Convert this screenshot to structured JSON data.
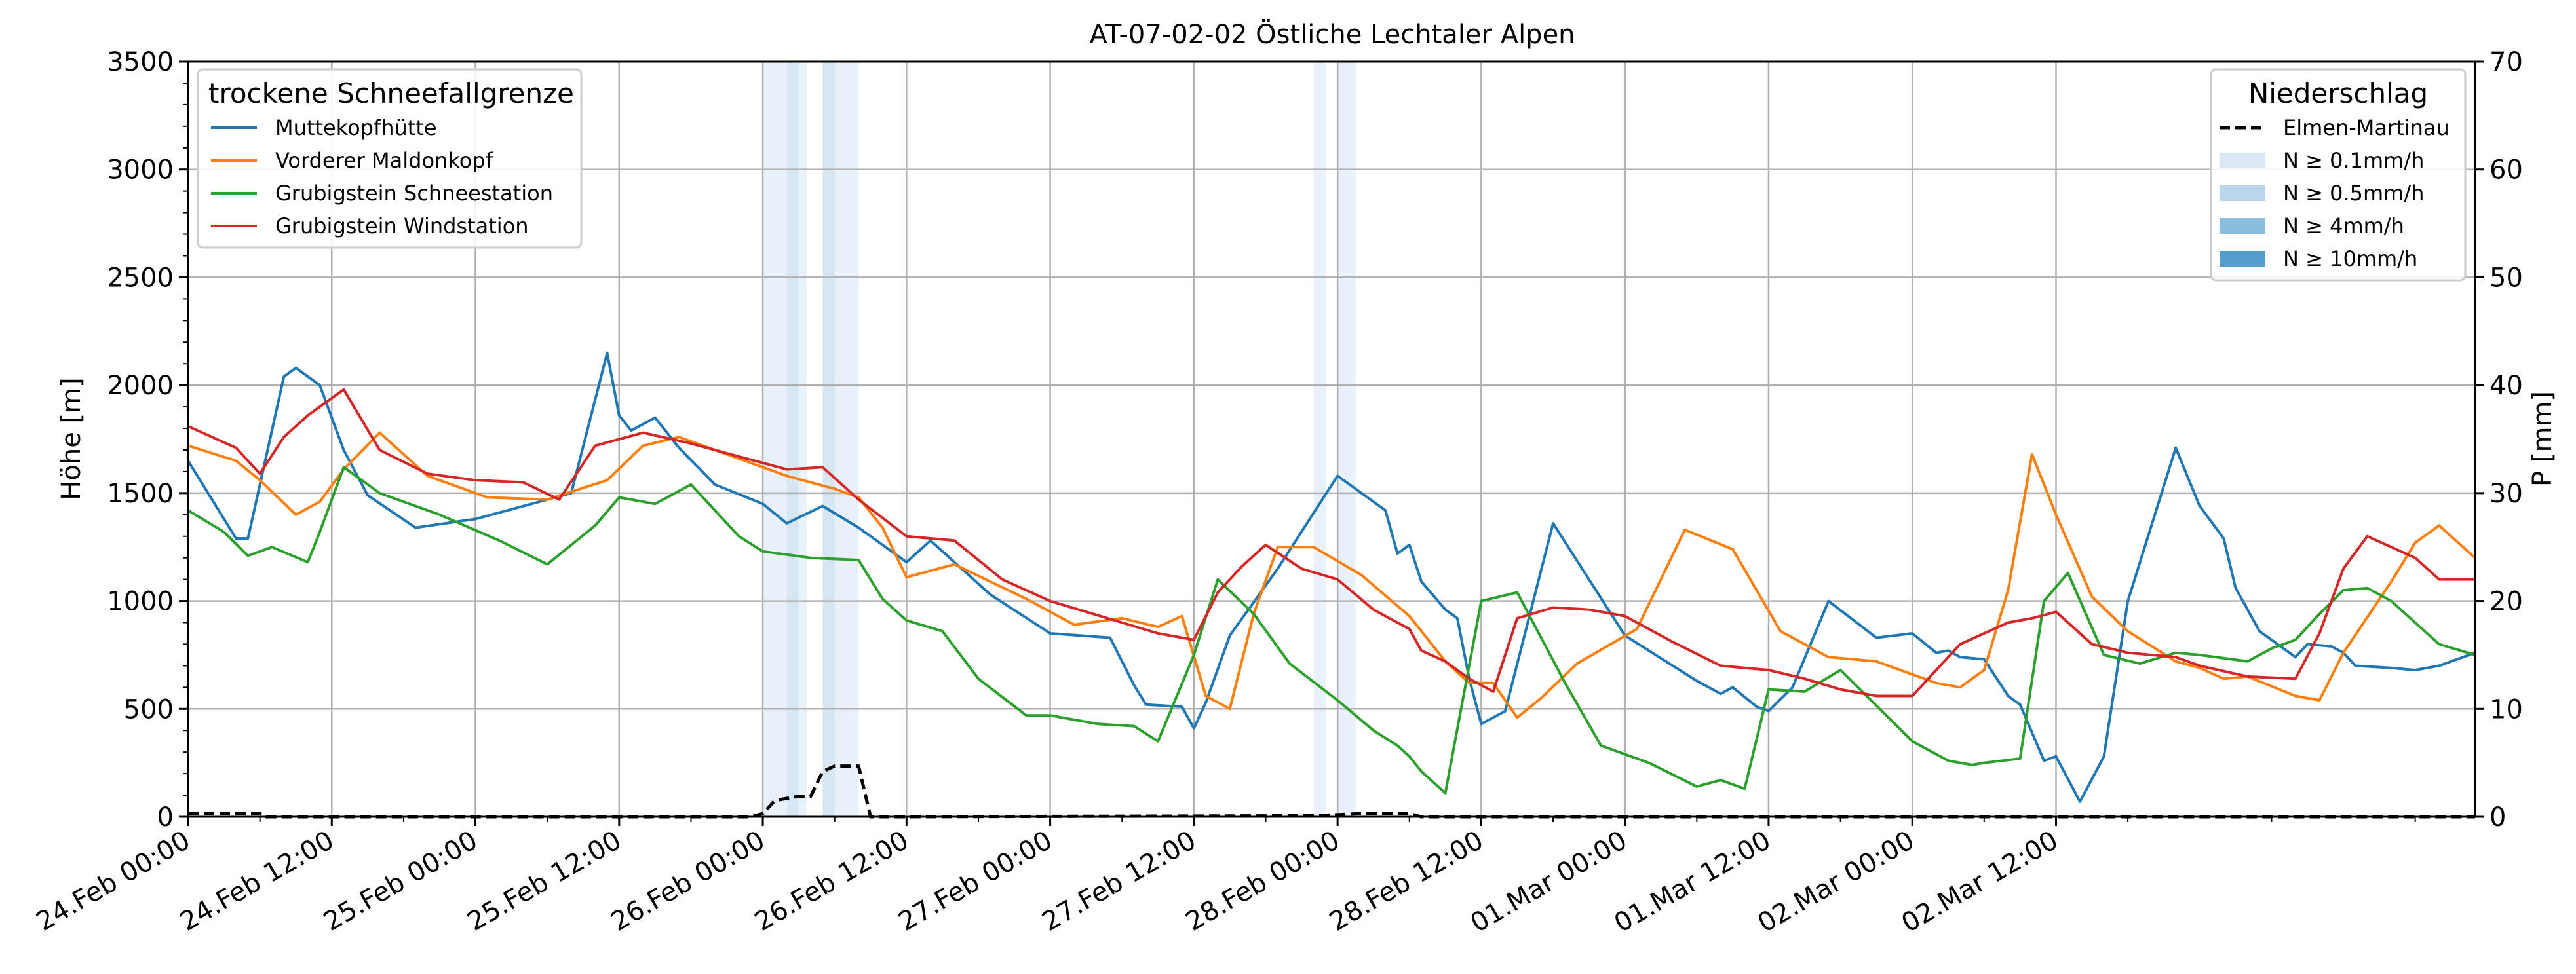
{
  "chart_data": {
    "type": "line",
    "title": "AT-07-02-02 Östliche Lechtaler Alpen",
    "ylabel": "Höhe [m]",
    "y2label": "P [mm]",
    "xlim": [
      "2024-02-24 00:00",
      "2024-03-02 23:00"
    ],
    "ylim": [
      0,
      3500
    ],
    "y2lim": [
      0,
      70
    ],
    "grid": true,
    "x_tick_labels": [
      "24.Feb 00:00",
      "24.Feb 12:00",
      "25.Feb 00:00",
      "25.Feb 12:00",
      "26.Feb 00:00",
      "26.Feb 12:00",
      "27.Feb 00:00",
      "27.Feb 12:00",
      "28.Feb 00:00",
      "28.Feb 12:00",
      "01.Mar 00:00",
      "01.Mar 12:00",
      "02.Mar 00:00",
      "02.Mar 12:00"
    ],
    "y_ticks": [
      0,
      500,
      1000,
      1500,
      2000,
      2500,
      3000,
      3500
    ],
    "y2_ticks": [
      0,
      10,
      20,
      30,
      40,
      50,
      60,
      70
    ],
    "legend_snow": {
      "title": "trockene Schneefallgrenze",
      "position": "top-left",
      "entries": [
        "Muttekopfhütte",
        "Vorderer Maldonkopf",
        "Grubigstein Schneestation",
        "Grubigstein Windstation"
      ]
    },
    "legend_precip": {
      "title": "Niederschlag",
      "position": "top-right",
      "entries": [
        "Elmen-Martinau",
        "N ≥ 0.1mm/h",
        "N ≥ 0.5mm/h",
        "N ≥ 4mm/h",
        "N ≥ 10mm/h"
      ]
    },
    "colors": {
      "Muttekopfhütte": "#1f77b4",
      "Vorderer Maldonkopf": "#ff7f0e",
      "Grubigstein Schneestation": "#2ca02c",
      "Grubigstein Windstation": "#d62728",
      "Elmen-Martinau": "#000000",
      "N ≥ 0.1mm/h": "#dbe9f6",
      "N ≥ 0.5mm/h": "#bad6eb",
      "N ≥ 4mm/h": "#89bedc",
      "N ≥ 10mm/h": "#539ecd"
    },
    "series": [
      {
        "name": "Muttekopfhütte",
        "axis": "left",
        "x": [
          "2024-02-24 00:00",
          "2024-02-24 04:00",
          "2024-02-24 05:00",
          "2024-02-24 08:00",
          "2024-02-24 09:00",
          "2024-02-24 11:00",
          "2024-02-24 13:00",
          "2024-02-24 15:00",
          "2024-02-24 19:00",
          "2024-02-25 00:00",
          "2024-02-25 08:00",
          "2024-02-25 11:00",
          "2024-02-25 12:00",
          "2024-02-25 13:00",
          "2024-02-25 15:00",
          "2024-02-25 17:00",
          "2024-02-25 20:00",
          "2024-02-26 00:00",
          "2024-02-26 02:00",
          "2024-02-26 05:00",
          "2024-02-26 08:00",
          "2024-02-26 10:00",
          "2024-02-26 12:00",
          "2024-02-26 14:00",
          "2024-02-26 19:00",
          "2024-02-27 00:00",
          "2024-02-27 05:00",
          "2024-02-27 07:00",
          "2024-02-27 08:00",
          "2024-02-27 11:00",
          "2024-02-27 12:00",
          "2024-02-27 13:00",
          "2024-02-27 15:00",
          "2024-02-27 19:00",
          "2024-02-28 00:00",
          "2024-02-28 04:00",
          "2024-02-28 05:00",
          "2024-02-28 06:00",
          "2024-02-28 07:00",
          "2024-02-28 09:00",
          "2024-02-28 10:00",
          "2024-02-28 11:00",
          "2024-02-28 12:00",
          "2024-02-28 14:00",
          "2024-02-28 18:00",
          "2024-02-29 00:00",
          "2024-02-29 06:00",
          "2024-02-29 08:00",
          "2024-02-29 09:00",
          "2024-02-29 11:00",
          "2024-02-29 12:00",
          "2024-02-29 14:00",
          "2024-02-29 17:00",
          "2024-02-29 21:00",
          "2024-03-01 00:00",
          "2024-03-01 02:00",
          "2024-03-01 03:00",
          "2024-03-01 04:00",
          "2024-03-01 06:00",
          "2024-03-01 08:00",
          "2024-03-01 09:00",
          "2024-03-01 11:00",
          "2024-03-01 12:00",
          "2024-03-01 14:00",
          "2024-03-01 16:00",
          "2024-03-01 18:00",
          "2024-03-01 22:00",
          "2024-03-02 00:00",
          "2024-03-02 02:00",
          "2024-03-02 03:00",
          "2024-03-02 05:00",
          "2024-03-02 08:00",
          "2024-03-02 09:00",
          "2024-03-02 11:00",
          "2024-03-02 12:00",
          "2024-03-02 13:00",
          "2024-03-02 16:00",
          "2024-03-02 18:00",
          "2024-03-02 20:00",
          "2024-03-02 23:00"
        ],
        "y": [
          1650,
          1290,
          1290,
          2040,
          2080,
          2000,
          1700,
          1490,
          1340,
          1380,
          1500,
          2150,
          1860,
          1790,
          1850,
          1710,
          1540,
          1450,
          1360,
          1440,
          1340,
          1260,
          1180,
          1280,
          1030,
          850,
          830,
          610,
          520,
          510,
          410,
          530,
          840,
          1150,
          1580,
          1420,
          1220,
          1260,
          1090,
          960,
          920,
          640,
          430,
          490,
          1360,
          840,
          630,
          570,
          600,
          510,
          490,
          600,
          1000,
          830,
          850,
          760,
          770,
          740,
          730,
          560,
          520,
          260,
          280,
          70,
          280,
          1000,
          1710,
          1440,
          1290,
          1060,
          860,
          740,
          800,
          790,
          760,
          700,
          690,
          680,
          700,
          760
        ]
      },
      {
        "name": "Vorderer Maldonkopf",
        "axis": "left",
        "x": [
          "2024-02-24 00:00",
          "2024-02-24 04:00",
          "2024-02-24 06:00",
          "2024-02-24 09:00",
          "2024-02-24 11:00",
          "2024-02-24 13:00",
          "2024-02-24 16:00",
          "2024-02-24 20:00",
          "2024-02-25 01:00",
          "2024-02-25 06:00",
          "2024-02-25 11:00",
          "2024-02-25 14:00",
          "2024-02-25 17:00",
          "2024-02-25 22:00",
          "2024-02-26 02:00",
          "2024-02-26 06:00",
          "2024-02-26 08:00",
          "2024-02-26 10:00",
          "2024-02-26 12:00",
          "2024-02-26 16:00",
          "2024-02-26 22:00",
          "2024-02-27 02:00",
          "2024-02-27 06:00",
          "2024-02-27 09:00",
          "2024-02-27 11:00",
          "2024-02-27 13:00",
          "2024-02-27 15:00",
          "2024-02-27 17:00",
          "2024-02-27 19:00",
          "2024-02-27 22:00",
          "2024-02-28 02:00",
          "2024-02-28 06:00",
          "2024-02-28 09:00",
          "2024-02-28 11:00",
          "2024-02-28 13:00",
          "2024-02-28 15:00",
          "2024-02-28 17:00",
          "2024-02-28 20:00",
          "2024-02-29 01:00",
          "2024-02-29 05:00",
          "2024-02-29 09:00",
          "2024-02-29 13:00",
          "2024-02-29 17:00",
          "2024-02-29 21:00",
          "2024-03-01 00:00",
          "2024-03-01 02:00",
          "2024-03-01 04:00",
          "2024-03-01 06:00",
          "2024-03-01 08:00",
          "2024-03-01 10:00",
          "2024-03-01 12:00",
          "2024-03-01 15:00",
          "2024-03-01 18:00",
          "2024-03-01 22:00",
          "2024-03-02 00:00",
          "2024-03-02 02:00",
          "2024-03-02 04:00",
          "2024-03-02 08:00",
          "2024-03-02 10:00",
          "2024-03-02 12:00",
          "2024-03-02 16:00",
          "2024-03-02 18:00",
          "2024-03-02 20:00",
          "2024-03-02 23:00"
        ],
        "y": [
          1720,
          1650,
          1560,
          1400,
          1460,
          1610,
          1780,
          1580,
          1480,
          1470,
          1560,
          1720,
          1760,
          1660,
          1580,
          1520,
          1480,
          1340,
          1110,
          1170,
          1010,
          890,
          920,
          880,
          930,
          560,
          500,
          940,
          1250,
          1250,
          1120,
          930,
          720,
          620,
          620,
          460,
          550,
          710,
          870,
          1330,
          1240,
          860,
          740,
          720,
          660,
          620,
          600,
          680,
          1050,
          1680,
          1400,
          1020,
          860,
          720,
          690,
          640,
          650,
          560,
          540,
          760,
          1090,
          1270,
          1350,
          1200
        ]
      },
      {
        "name": "Grubigstein Schneestation",
        "axis": "left",
        "x": [
          "2024-02-24 00:00",
          "2024-02-24 03:00",
          "2024-02-24 05:00",
          "2024-02-24 07:00",
          "2024-02-24 10:00",
          "2024-02-24 11:00",
          "2024-02-24 13:00",
          "2024-02-24 16:00",
          "2024-02-24 21:00",
          "2024-02-25 02:00",
          "2024-02-25 06:00",
          "2024-02-25 10:00",
          "2024-02-25 12:00",
          "2024-02-25 15:00",
          "2024-02-25 18:00",
          "2024-02-25 22:00",
          "2024-02-26 00:00",
          "2024-02-26 04:00",
          "2024-02-26 08:00",
          "2024-02-26 10:00",
          "2024-02-26 12:00",
          "2024-02-26 15:00",
          "2024-02-26 18:00",
          "2024-02-26 22:00",
          "2024-02-27 00:00",
          "2024-02-27 04:00",
          "2024-02-27 07:00",
          "2024-02-27 09:00",
          "2024-02-27 12:00",
          "2024-02-27 14:00",
          "2024-02-27 17:00",
          "2024-02-27 20:00",
          "2024-02-28 00:00",
          "2024-02-28 03:00",
          "2024-02-28 05:00",
          "2024-02-28 06:00",
          "2024-02-28 07:00",
          "2024-02-28 09:00",
          "2024-02-28 12:00",
          "2024-02-28 15:00",
          "2024-02-28 19:00",
          "2024-02-28 22:00",
          "2024-02-29 02:00",
          "2024-02-29 06:00",
          "2024-02-29 08:00",
          "2024-02-29 10:00",
          "2024-02-29 12:00",
          "2024-02-29 15:00",
          "2024-02-29 18:00",
          "2024-02-29 22:00",
          "2024-03-01 00:00",
          "2024-03-01 03:00",
          "2024-03-01 05:00",
          "2024-03-01 06:00",
          "2024-03-01 09:00",
          "2024-03-01 11:00",
          "2024-03-01 13:00",
          "2024-03-01 16:00",
          "2024-03-01 19:00",
          "2024-03-01 22:00",
          "2024-03-02 00:00",
          "2024-03-02 04:00",
          "2024-03-02 06:00",
          "2024-03-02 08:00",
          "2024-03-02 10:00",
          "2024-03-02 12:00",
          "2024-03-02 14:00",
          "2024-03-02 16:00",
          "2024-03-02 18:00",
          "2024-03-02 20:00",
          "2024-03-02 23:00"
        ],
        "y": [
          1420,
          1320,
          1210,
          1250,
          1180,
          1320,
          1620,
          1500,
          1400,
          1280,
          1170,
          1350,
          1480,
          1450,
          1540,
          1300,
          1230,
          1200,
          1190,
          1010,
          910,
          860,
          640,
          470,
          470,
          430,
          420,
          350,
          750,
          1100,
          940,
          710,
          540,
          400,
          330,
          280,
          210,
          110,
          1000,
          1040,
          620,
          330,
          250,
          140,
          170,
          130,
          590,
          580,
          680,
          460,
          350,
          260,
          240,
          250,
          270,
          1000,
          1130,
          750,
          710,
          760,
          750,
          720,
          780,
          820,
          940,
          1050,
          1060,
          1000,
          900,
          800,
          750
        ]
      },
      {
        "name": "Grubigstein Windstation",
        "axis": "left",
        "x": [
          "2024-02-24 00:00",
          "2024-02-24 04:00",
          "2024-02-24 06:00",
          "2024-02-24 08:00",
          "2024-02-24 10:00",
          "2024-02-24 13:00",
          "2024-02-24 16:00",
          "2024-02-24 20:00",
          "2024-02-25 00:00",
          "2024-02-25 04:00",
          "2024-02-25 07:00",
          "2024-02-25 10:00",
          "2024-02-25 14:00",
          "2024-02-25 18:00",
          "2024-02-25 22:00",
          "2024-02-26 02:00",
          "2024-02-26 05:00",
          "2024-02-26 08:00",
          "2024-02-26 12:00",
          "2024-02-26 16:00",
          "2024-02-26 20:00",
          "2024-02-27 00:00",
          "2024-02-27 06:00",
          "2024-02-27 09:00",
          "2024-02-27 12:00",
          "2024-02-27 14:00",
          "2024-02-27 16:00",
          "2024-02-27 18:00",
          "2024-02-27 21:00",
          "2024-02-28 00:00",
          "2024-02-28 03:00",
          "2024-02-28 06:00",
          "2024-02-28 07:00",
          "2024-02-28 09:00",
          "2024-02-28 11:00",
          "2024-02-28 13:00",
          "2024-02-28 15:00",
          "2024-02-28 18:00",
          "2024-02-28 21:00",
          "2024-02-29 00:00",
          "2024-02-29 04:00",
          "2024-02-29 08:00",
          "2024-02-29 12:00",
          "2024-02-29 15:00",
          "2024-02-29 18:00",
          "2024-02-29 21:00",
          "2024-03-01 00:00",
          "2024-03-01 04:00",
          "2024-03-01 08:00",
          "2024-03-01 10:00",
          "2024-03-01 12:00",
          "2024-03-01 15:00",
          "2024-03-01 18:00",
          "2024-03-01 22:00",
          "2024-03-02 00:00",
          "2024-03-02 04:00",
          "2024-03-02 08:00",
          "2024-03-02 10:00",
          "2024-03-02 12:00",
          "2024-03-02 14:00",
          "2024-03-02 16:00",
          "2024-03-02 18:00",
          "2024-03-02 20:00",
          "2024-03-02 22:00",
          "2024-03-02 23:00"
        ],
        "y": [
          1810,
          1710,
          1590,
          1760,
          1860,
          1980,
          1700,
          1590,
          1560,
          1550,
          1470,
          1720,
          1780,
          1730,
          1670,
          1610,
          1620,
          1470,
          1300,
          1280,
          1100,
          1000,
          900,
          850,
          820,
          1040,
          1160,
          1260,
          1150,
          1100,
          960,
          870,
          770,
          720,
          640,
          580,
          920,
          970,
          960,
          930,
          810,
          700,
          680,
          640,
          590,
          560,
          560,
          800,
          900,
          920,
          950,
          800,
          760,
          740,
          700,
          650,
          640,
          850,
          1150,
          1300,
          1250,
          1200,
          1100,
          1100,
          1100
        ]
      },
      {
        "name": "Elmen-Martinau",
        "axis": "right",
        "x": [
          "2024-02-24 00:00",
          "2024-02-24 06:00",
          "2024-02-24 06:30",
          "2024-02-25 23:00",
          "2024-02-26 00:00",
          "2024-02-26 01:00",
          "2024-02-26 02:00",
          "2024-02-26 03:00",
          "2024-02-26 04:00",
          "2024-02-26 05:00",
          "2024-02-26 06:00",
          "2024-02-26 07:00",
          "2024-02-26 08:00",
          "2024-02-26 09:00",
          "2024-02-26 10:00",
          "2024-02-26 11:00",
          "2024-02-27 22:00",
          "2024-02-28 02:00",
          "2024-02-28 04:00",
          "2024-02-28 06:00",
          "2024-02-28 07:00",
          "2024-03-02 23:00"
        ],
        "y": [
          0.3,
          0.3,
          0,
          0,
          0.3,
          1.5,
          1.7,
          1.9,
          1.9,
          4.2,
          4.7,
          4.7,
          4.7,
          0,
          0,
          0,
          0.1,
          0.3,
          0.3,
          0.3,
          0,
          0
        ]
      }
    ],
    "precip_bands": [
      {
        "start": "2024-02-26 00:00",
        "end": "2024-02-26 02:00",
        "level": "N ≥ 0.1mm/h"
      },
      {
        "start": "2024-02-26 02:00",
        "end": "2024-02-26 03:00",
        "level": "N ≥ 0.5mm/h"
      },
      {
        "start": "2024-02-26 03:00",
        "end": "2024-02-26 03:40",
        "level": "N ≥ 0.1mm/h"
      },
      {
        "start": "2024-02-26 05:00",
        "end": "2024-02-26 06:00",
        "level": "N ≥ 0.5mm/h"
      },
      {
        "start": "2024-02-26 06:00",
        "end": "2024-02-26 08:00",
        "level": "N ≥ 0.1mm/h"
      },
      {
        "start": "2024-02-27 22:00",
        "end": "2024-02-27 23:00",
        "level": "N ≥ 0.1mm/h"
      },
      {
        "start": "2024-02-28 00:00",
        "end": "2024-02-28 01:30",
        "level": "N ≥ 0.1mm/h"
      }
    ]
  }
}
